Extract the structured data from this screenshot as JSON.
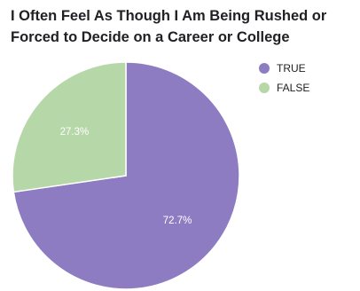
{
  "chart_data": {
    "type": "pie",
    "title": "I Often Feel As Though I Am Being Rushed or Forced to Decide on a Career or College",
    "legend_position": "top-right",
    "slices": [
      {
        "label": "TRUE",
        "value": 72.7,
        "display": "72.7%",
        "color": "#8e7cc3"
      },
      {
        "label": "FALSE",
        "value": 27.3,
        "display": "27.3%",
        "color": "#b6d7a8"
      }
    ]
  }
}
